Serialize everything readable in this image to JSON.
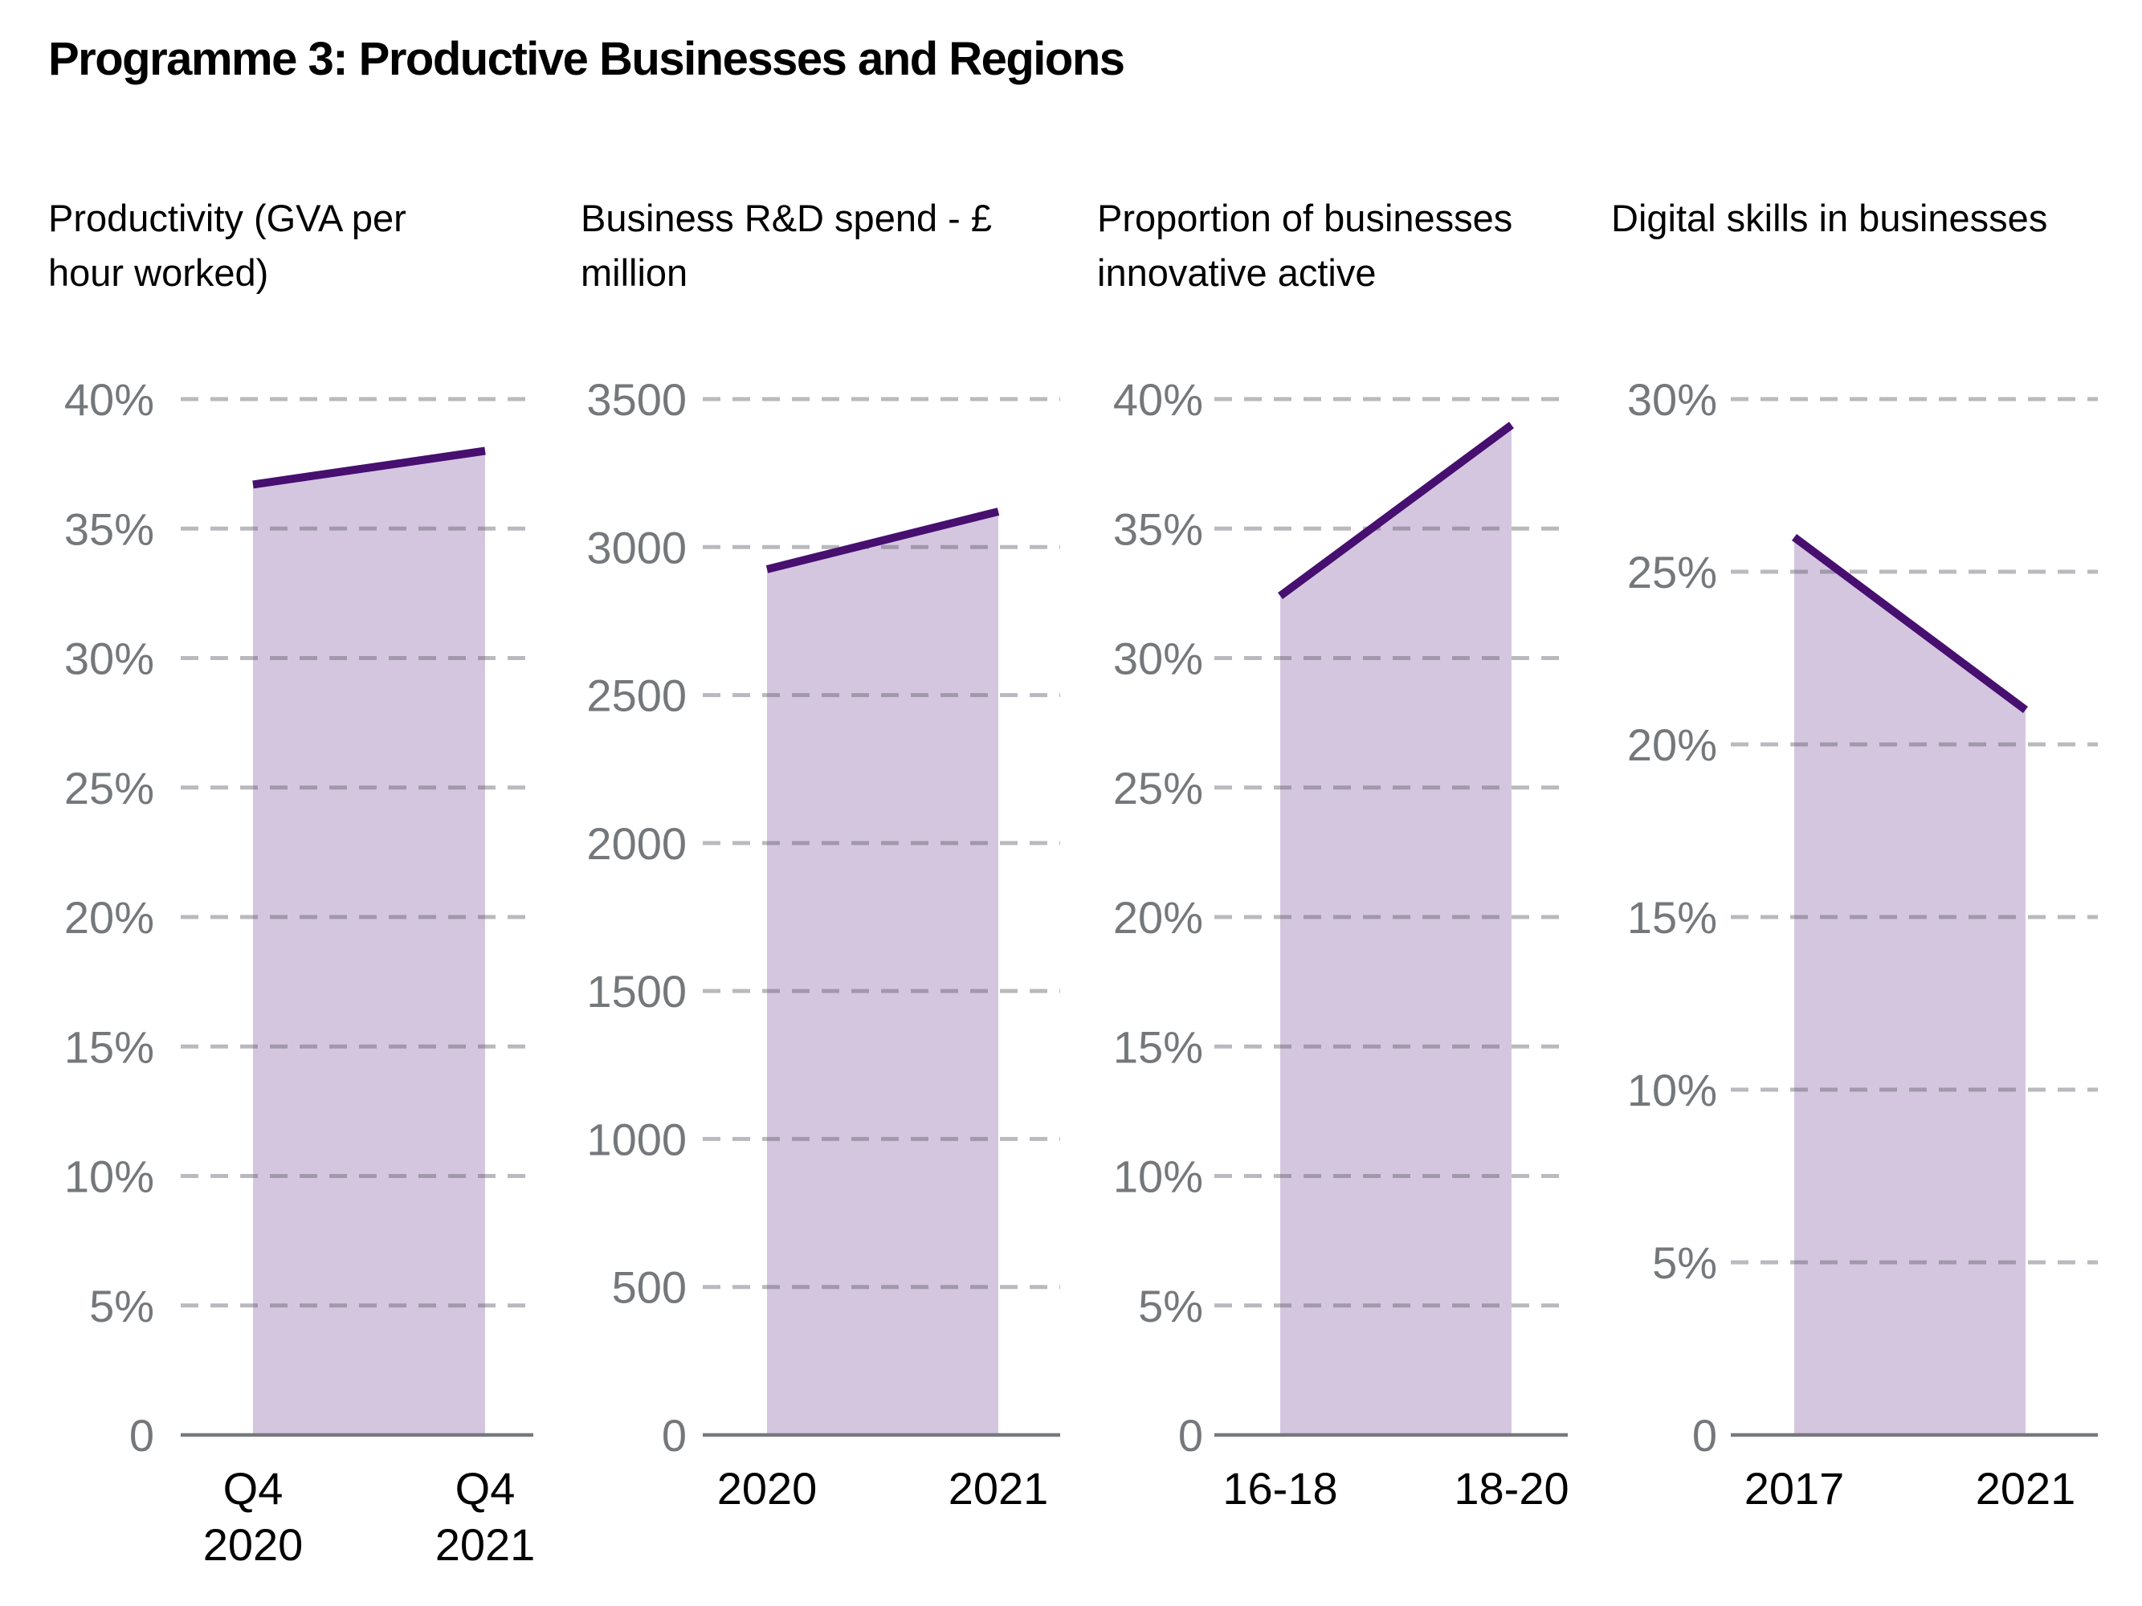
{
  "header": {
    "title": "Programme 3: Productive Businesses and Regions"
  },
  "colors": {
    "accent_line": "#470F6F",
    "area_fill": "#D5C6E0",
    "gridline": "rgba(90,88,99,0.42)",
    "axis_line": "#76797C",
    "ytick_label": "#75787B",
    "xtick_label": "#000000",
    "title_text": "#000000"
  },
  "chart_data": [
    {
      "id": "productivity",
      "type": "area",
      "title": "Productivity (GVA per hour worked)",
      "title_lines": [
        "Productivity (GVA per",
        "hour worked)"
      ],
      "categories": [
        [
          "Q4",
          "2020"
        ],
        [
          "Q4",
          "2021"
        ]
      ],
      "values": [
        36.7,
        38
      ],
      "unit": "%",
      "ylim": [
        0,
        40
      ],
      "ytick_values": [
        40,
        35,
        30,
        25,
        20,
        15,
        10,
        5,
        0
      ],
      "ytick_labels": [
        "40%",
        "35%",
        "30%",
        "25%",
        "20%",
        "15%",
        "10%",
        "5%",
        "0"
      ],
      "grid": "dashed-horizontal",
      "legend": "none"
    },
    {
      "id": "business-rd-spend",
      "type": "area",
      "title": "Business R&D spend - £ million",
      "title_lines": [
        "Business R&D spend - £",
        "million"
      ],
      "categories": [
        "2020",
        "2021"
      ],
      "values": [
        2925,
        3120
      ],
      "unit": "£ million",
      "ylim": [
        0,
        3500
      ],
      "ytick_values": [
        3500,
        3000,
        2500,
        2000,
        1500,
        1000,
        500,
        0
      ],
      "ytick_labels": [
        "3500",
        "3000",
        "2500",
        "2000",
        "1500",
        "1000",
        "500",
        "0"
      ],
      "grid": "dashed-horizontal",
      "legend": "none"
    },
    {
      "id": "innovative-active",
      "type": "area",
      "title": "Proportion of businesses innovative active",
      "title_lines": [
        "Proportion of businesses",
        "innovative active"
      ],
      "categories": [
        "16-18",
        "18-20"
      ],
      "values": [
        32.4,
        39
      ],
      "unit": "%",
      "ylim": [
        0,
        40
      ],
      "ytick_values": [
        40,
        35,
        30,
        25,
        20,
        15,
        10,
        5,
        0
      ],
      "ytick_labels": [
        "40%",
        "35%",
        "30%",
        "25%",
        "20%",
        "15%",
        "10%",
        "5%",
        "0"
      ],
      "grid": "dashed-horizontal",
      "legend": "none"
    },
    {
      "id": "digital-skills",
      "type": "area",
      "title": "Digital skills in businesses",
      "title_lines": [
        "Digital skills in businesses"
      ],
      "categories": [
        "2017",
        "2021"
      ],
      "values": [
        26,
        21
      ],
      "unit": "%",
      "ylim": [
        0,
        30
      ],
      "ytick_values": [
        30,
        25,
        20,
        15,
        10,
        5,
        0
      ],
      "ytick_labels": [
        "30%",
        "25%",
        "20%",
        "15%",
        "10%",
        "5%",
        "0"
      ],
      "grid": "dashed-horizontal",
      "legend": "none"
    }
  ]
}
